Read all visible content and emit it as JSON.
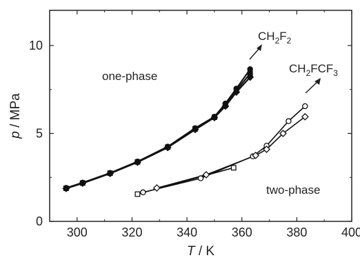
{
  "chart_data": {
    "type": "scatter",
    "xlabel": {
      "var": "T",
      "unit": " / K"
    },
    "ylabel": {
      "var": "p",
      "unit": " / MPa"
    },
    "xlim": [
      290,
      400
    ],
    "ylim": [
      0,
      12
    ],
    "x_ticks": [
      300,
      320,
      340,
      360,
      380,
      400
    ],
    "y_ticks": [
      0,
      5,
      10
    ],
    "grid": false,
    "annotations": {
      "one_phase": "one-phase",
      "two_phase": "two-phase",
      "ch2f2": {
        "a": "CH",
        "s1": "2",
        "b": "F",
        "s2": "2"
      },
      "r134a": {
        "a": "CH",
        "s1": "2",
        "b": "FCF",
        "s2": "3"
      }
    },
    "series": [
      {
        "marker": "filled-circle",
        "x": [
          296,
          302,
          312,
          322,
          333,
          343,
          350,
          354,
          358,
          363
        ],
        "y": [
          1.9,
          2.2,
          2.75,
          3.4,
          4.25,
          5.3,
          5.95,
          6.7,
          7.55,
          8.65
        ]
      },
      {
        "marker": "filled-diamond",
        "x": [
          296,
          302,
          312,
          322,
          333,
          343,
          350,
          354,
          358,
          363
        ],
        "y": [
          1.87,
          2.17,
          2.72,
          3.36,
          4.2,
          5.22,
          5.9,
          6.55,
          7.35,
          8.2
        ]
      },
      {
        "marker": "filled-square",
        "x": [
          296,
          302,
          312,
          322,
          333,
          343,
          350,
          354,
          358,
          363
        ],
        "y": [
          1.88,
          2.18,
          2.74,
          3.38,
          4.22,
          5.26,
          5.92,
          6.6,
          7.45,
          8.4
        ]
      },
      {
        "marker": "open-circle",
        "x": [
          324,
          345,
          364,
          369,
          377,
          383
        ],
        "y": [
          1.65,
          2.45,
          3.7,
          4.3,
          5.7,
          6.55
        ]
      },
      {
        "marker": "open-diamond",
        "x": [
          329,
          347,
          365,
          369,
          375,
          383
        ],
        "y": [
          1.9,
          2.65,
          3.75,
          4.1,
          5.0,
          5.95
        ]
      },
      {
        "marker": "open-square",
        "x": [
          322,
          357
        ],
        "y": [
          1.55,
          3.05
        ]
      }
    ]
  }
}
